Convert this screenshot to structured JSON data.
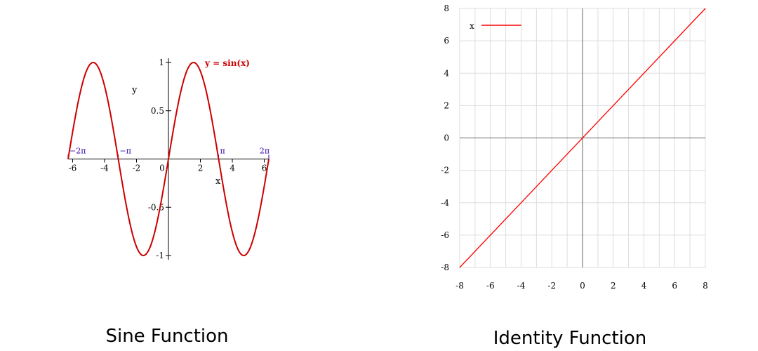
{
  "colors": {
    "curve": "#cc0000",
    "line": "#ff0000",
    "pi_labels": "#3300aa",
    "grid": "#dddddd",
    "axis": "#666666"
  },
  "chart_data": [
    {
      "type": "line",
      "caption": "Sine Function",
      "series": [
        {
          "name": "y = sin(x)",
          "function": "sin",
          "x_range": [
            -6.2832,
            6.2832
          ]
        }
      ],
      "xlabel": "x",
      "ylabel": "y",
      "xlim": [
        -6.2832,
        6.2832
      ],
      "ylim": [
        -1,
        1
      ],
      "x_ticks": [
        {
          "value": -6,
          "label": "-6"
        },
        {
          "value": -4,
          "label": "-4"
        },
        {
          "value": -2,
          "label": "-2"
        },
        {
          "value": 0,
          "label": "0"
        },
        {
          "value": 2,
          "label": "2"
        },
        {
          "value": 4,
          "label": "4"
        },
        {
          "value": 6,
          "label": "6"
        }
      ],
      "y_ticks": [
        {
          "value": 1,
          "label": "1"
        },
        {
          "value": 0.5,
          "label": "0.5"
        },
        {
          "value": -0.5,
          "label": "-0.5"
        },
        {
          "value": -1,
          "label": "-1"
        }
      ],
      "annotations": [
        {
          "value": -6.2832,
          "label": "−2π"
        },
        {
          "value": -3.1416,
          "label": "−π"
        },
        {
          "value": 3.1416,
          "label": "π"
        },
        {
          "value": 6.2832,
          "label": "2π"
        }
      ],
      "grid": false,
      "legend": "top-right"
    },
    {
      "type": "line",
      "caption": "Identity Function",
      "series": [
        {
          "name": "x",
          "x": [
            -8,
            8
          ],
          "y": [
            -8,
            8
          ]
        }
      ],
      "xlim": [
        -8,
        8
      ],
      "ylim": [
        -8,
        8
      ],
      "x_ticks": [
        {
          "value": -8,
          "label": "-8"
        },
        {
          "value": -6,
          "label": "-6"
        },
        {
          "value": -4,
          "label": "-4"
        },
        {
          "value": -2,
          "label": "-2"
        },
        {
          "value": 0,
          "label": "0"
        },
        {
          "value": 2,
          "label": "2"
        },
        {
          "value": 4,
          "label": "4"
        },
        {
          "value": 6,
          "label": "6"
        },
        {
          "value": 8,
          "label": "8"
        }
      ],
      "y_ticks": [
        {
          "value": 8,
          "label": "8"
        },
        {
          "value": 6,
          "label": "6"
        },
        {
          "value": 4,
          "label": "4"
        },
        {
          "value": 2,
          "label": "2"
        },
        {
          "value": 0,
          "label": "0"
        },
        {
          "value": -2,
          "label": "-2"
        },
        {
          "value": -4,
          "label": "-4"
        },
        {
          "value": -6,
          "label": "-6"
        },
        {
          "value": -8,
          "label": "-8"
        }
      ],
      "grid": true,
      "legend": "top-left"
    }
  ]
}
